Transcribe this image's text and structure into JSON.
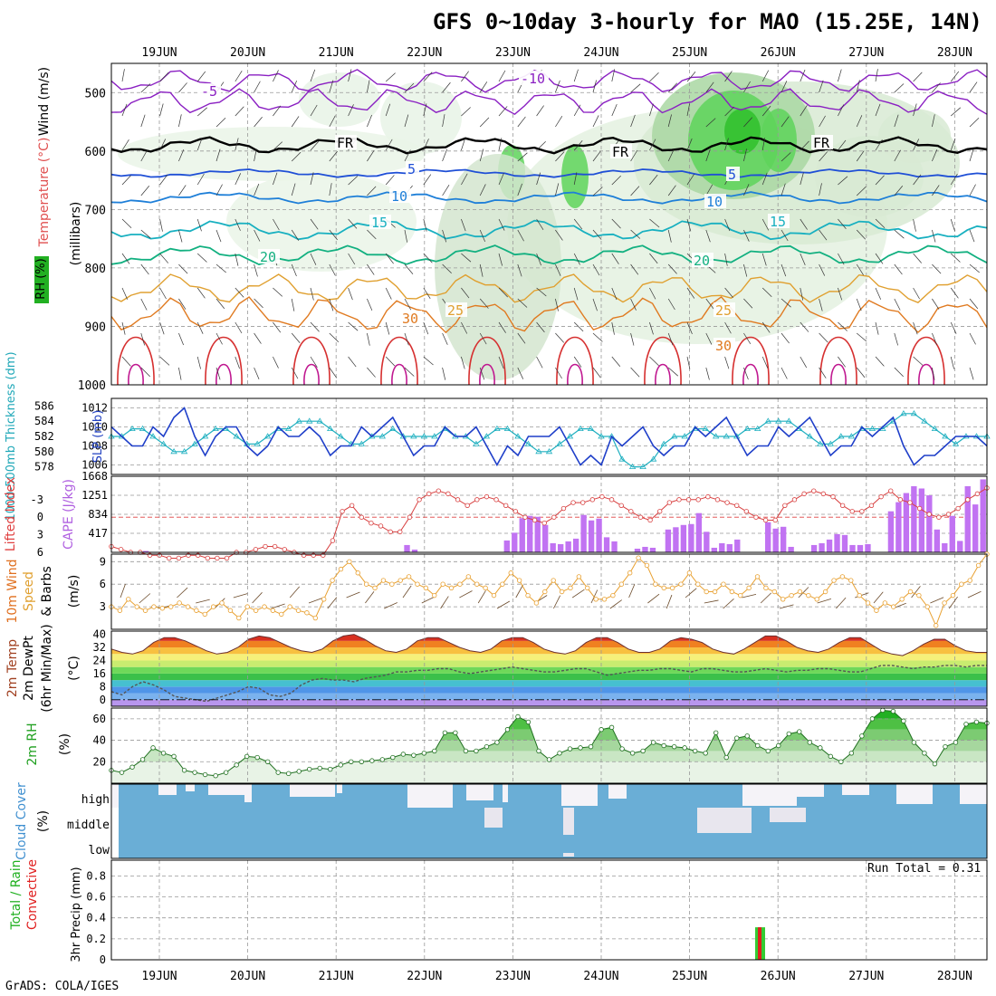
{
  "title": "GFS 0~10day 3-hourly for MAO (15.25E, 14N)",
  "credit": "GrADS: COLA/IGES",
  "run_total": "Run Total = 0.31",
  "colors": {
    "rh_green": "#2ea02e",
    "temp_purple": "#8a1fc2",
    "temp_blue": "#1f4fd6",
    "slp_blue": "#1f3fc9",
    "thick_cyan": "#20b0c0",
    "cape_bar": "#c173f2",
    "li_red": "#d84040",
    "wind_orange": "#e8a030",
    "cloud_blue": "#6aaed6",
    "precip_green": "#33cc33",
    "precip_red": "#e02020"
  },
  "chart_data": [
    {
      "type": "line",
      "panel": "upper-air",
      "x_ticks": [
        "19JUN",
        "20JUN",
        "21JUN",
        "22JUN",
        "23JUN",
        "24JUN",
        "25JUN",
        "26JUN",
        "27JUN",
        "28JUN"
      ],
      "ylabel_parts": [
        "RH (%)",
        "Temperature (°C)",
        "Wind (m/s)"
      ],
      "ylabel_units": "(millibars)",
      "y_ticks": [
        500,
        600,
        700,
        800,
        900,
        1000
      ],
      "ylim": [
        450,
        1000
      ],
      "contour_labels": [
        "-10",
        "-5",
        "FR",
        "FR",
        "FR",
        "5",
        "5",
        "10",
        "10",
        "15",
        "15",
        "20",
        "20",
        "25",
        "25",
        "30",
        "30"
      ]
    },
    {
      "type": "line",
      "panel": "thickness-slp",
      "ylabel_left": "1000-500mb Thickness (dm)",
      "ylabel_right": "SLP (mb)",
      "y_ticks_left": [
        578,
        580,
        582,
        584,
        586
      ],
      "y_ticks_right": [
        1006,
        1008,
        1010,
        1012
      ],
      "series": [
        {
          "name": "SLP (mb)",
          "values": [
            1010,
            1009,
            1008,
            1008,
            1010,
            1009,
            1011,
            1012,
            1009,
            1007,
            1009,
            1010,
            1010,
            1008,
            1007,
            1008,
            1010,
            1009,
            1009,
            1010,
            1009,
            1007,
            1008,
            1008,
            1010,
            1009,
            1010,
            1011,
            1009,
            1007,
            1008,
            1008,
            1010,
            1009,
            1009,
            1010,
            1008,
            1006,
            1008,
            1007,
            1009,
            1009,
            1009,
            1010,
            1008,
            1006,
            1007,
            1006,
            1009,
            1008,
            1009,
            1010,
            1008,
            1007,
            1008,
            1008,
            1010,
            1009,
            1010,
            1011,
            1009,
            1007,
            1008,
            1008,
            1010,
            1009,
            1010,
            1011,
            1009,
            1007,
            1008,
            1008,
            1010,
            1009,
            1010,
            1011,
            1008,
            1006,
            1007,
            1007,
            1008,
            1009,
            1009,
            1009,
            1008
          ]
        },
        {
          "name": "Thickness (dm)",
          "values": [
            582,
            582,
            583,
            583,
            582,
            581,
            580,
            580,
            581,
            582,
            583,
            583,
            582,
            581,
            581,
            582,
            583,
            583,
            584,
            584,
            584,
            583,
            582,
            581,
            581,
            582,
            582,
            583,
            582,
            582,
            582,
            582,
            583,
            582,
            582,
            581,
            582,
            583,
            583,
            582,
            581,
            580,
            580,
            581,
            582,
            583,
            583,
            582,
            582,
            579,
            578,
            578,
            579,
            581,
            582,
            582,
            583,
            583,
            582,
            582,
            582,
            583,
            583,
            584,
            584,
            584,
            583,
            582,
            581,
            581,
            582,
            582,
            583,
            583,
            583,
            584,
            585,
            585,
            584,
            583,
            582,
            581,
            582,
            582,
            582
          ]
        }
      ]
    },
    {
      "type": "bar",
      "panel": "cape-li",
      "ylabel_left": "Lifted Index",
      "ylabel_right": "CAPE (J/kg)",
      "y_ticks_left": [
        -3,
        0,
        3,
        6
      ],
      "y_ticks_right": [
        417,
        834,
        1251,
        1668
      ],
      "series": [
        {
          "name": "CAPE (J/kg)",
          "values": [
            0,
            0,
            0,
            0,
            30,
            0,
            0,
            0,
            0,
            0,
            0,
            0,
            0,
            0,
            0,
            0,
            0,
            0,
            0,
            0,
            0,
            0,
            0,
            0,
            0,
            0,
            0,
            0,
            0,
            0,
            0,
            0,
            0,
            0,
            0,
            0,
            0,
            0,
            160,
            60,
            0,
            0,
            0,
            0,
            0,
            0,
            0,
            0,
            0,
            0,
            0,
            260,
            430,
            750,
            800,
            780,
            600,
            200,
            180,
            240,
            300,
            820,
            700,
            740,
            330,
            240,
            0,
            0,
            80,
            120,
            100,
            0,
            500,
            550,
            600,
            620,
            860,
            450,
            100,
            200,
            180,
            280,
            0,
            0,
            0,
            660,
            520,
            560,
            120,
            0,
            0,
            160,
            200,
            280,
            400,
            380,
            160,
            160,
            180,
            0,
            0,
            900,
            1100,
            1300,
            1450,
            1400,
            1250,
            500,
            200,
            800,
            250,
            1450,
            1050,
            1600
          ]
        },
        {
          "name": "Lifted Index",
          "values": [
            5,
            5.5,
            6,
            6,
            6.5,
            6.5,
            7,
            7,
            6.5,
            6.5,
            7,
            7,
            7,
            6,
            6,
            5.5,
            5,
            5,
            5.5,
            6,
            6.5,
            6.5,
            6.5,
            4,
            -1,
            -2,
            0,
            1,
            1.5,
            2.5,
            2.5,
            0,
            -3,
            -4,
            -4.5,
            -4,
            -3,
            -2,
            -3,
            -3.5,
            -3,
            -2,
            -1,
            0,
            0.5,
            1,
            0,
            -1.5,
            -2.5,
            -2.5,
            -3,
            -3.5,
            -3,
            -2,
            -1,
            0,
            0.5,
            -1,
            -2.5,
            -3,
            -3,
            -3,
            -3.5,
            -3,
            -2.5,
            -2,
            -1,
            0,
            0.5,
            0.5,
            -2,
            -3,
            -4,
            -4.5,
            -4,
            -3.5,
            -2,
            -1,
            -1,
            -2,
            -3.5,
            -4.5,
            -3,
            -2.5,
            -1.5,
            -0.5,
            0,
            -0.5,
            -1.5,
            -3,
            -4,
            -5
          ]
        }
      ]
    },
    {
      "type": "line",
      "panel": "wind10m",
      "ylabel": "10m Wind Speed & Barbs (m/s)",
      "ylabel_lines": [
        "10m Wind",
        "Speed",
        "& Barbs"
      ],
      "ylabel_units": "(m/s)",
      "y_ticks": [
        3,
        6,
        9
      ],
      "ylim": [
        0,
        10
      ],
      "series": [
        {
          "name": "Wind Speed (m/s)",
          "values": [
            3,
            2.5,
            4,
            3,
            2.5,
            3,
            2.8,
            3,
            3.5,
            3,
            2.5,
            2,
            3,
            3.5,
            2.5,
            1.5,
            3,
            2.5,
            3,
            2.5,
            2,
            3,
            2.5,
            2.2,
            1.5,
            4,
            6.5,
            8,
            9,
            7.5,
            6,
            5.5,
            6.5,
            6,
            6.5,
            7,
            6,
            5.5,
            4.5,
            6,
            5.5,
            6,
            7,
            6,
            5.5,
            4.5,
            6,
            7.5,
            6.5,
            4.5,
            3.5,
            5,
            6.5,
            5,
            5.5,
            7,
            5.5,
            4,
            4,
            4.5,
            6,
            7.5,
            9.5,
            8.5,
            6,
            5.5,
            5.5,
            6,
            7.5,
            6,
            5,
            5,
            6,
            5,
            4.5,
            5.5,
            7,
            5.5,
            5,
            4,
            4.5,
            5,
            4.5,
            4,
            5,
            6.5,
            7,
            6.5,
            4.5,
            3.5,
            2.5,
            3.5,
            3,
            4,
            5,
            4.5,
            3,
            0.5,
            3.5,
            4.5,
            6,
            6.5,
            8.5,
            10
          ]
        }
      ]
    },
    {
      "type": "area",
      "panel": "temp2m",
      "ylabel_lines": [
        "2m Temp",
        "2m DewPt",
        "(6hr Min/Max)"
      ],
      "ylabel_units": "(°C)",
      "y_ticks": [
        0,
        8,
        16,
        24,
        32,
        40
      ],
      "series": [
        {
          "name": "2m Temp",
          "values": [
            31,
            29,
            28,
            30,
            35,
            38,
            38,
            36,
            33,
            30,
            28,
            29,
            32,
            37,
            39,
            38,
            35,
            32,
            30,
            29,
            31,
            36,
            39,
            40,
            37,
            33,
            30,
            29,
            31,
            36,
            38,
            38,
            35,
            32,
            30,
            29,
            31,
            36,
            38,
            38,
            35,
            31,
            29,
            28,
            30,
            35,
            38,
            38,
            35,
            31,
            29,
            29,
            31,
            36,
            38,
            37,
            35,
            31,
            29,
            28,
            31,
            35,
            39,
            39,
            36,
            32,
            30,
            29,
            31,
            35,
            38,
            38,
            34,
            30,
            28,
            27,
            30,
            34,
            37,
            37,
            33,
            30,
            29,
            29
          ]
        },
        {
          "name": "2m DewPt",
          "values": [
            5,
            3,
            8,
            11,
            9,
            6,
            2,
            1,
            0,
            -1,
            1,
            3,
            5,
            8,
            7,
            3,
            2,
            4,
            9,
            12,
            13,
            12,
            12,
            11,
            13,
            14,
            15,
            17,
            17,
            18,
            18,
            19,
            19,
            17,
            16,
            17,
            18,
            19,
            20,
            19,
            18,
            17,
            17,
            18,
            19,
            19,
            17,
            15,
            16,
            17,
            18,
            18,
            19,
            19,
            18,
            17,
            19,
            19,
            18,
            17,
            17,
            18,
            19,
            18,
            17,
            18,
            18,
            19,
            19,
            18,
            17,
            17,
            19,
            21,
            21,
            20,
            19,
            20,
            20,
            21,
            21,
            20,
            21,
            21
          ]
        }
      ]
    },
    {
      "type": "area",
      "panel": "rh2m",
      "ylabel": "2m RH",
      "ylabel_units": "(%)",
      "y_ticks": [
        20,
        40,
        60
      ],
      "ylim": [
        0,
        70
      ],
      "series": [
        {
          "name": "2m RH (%)",
          "values": [
            12,
            10,
            15,
            22,
            33,
            28,
            25,
            12,
            10,
            8,
            7,
            10,
            17,
            25,
            24,
            20,
            10,
            9,
            11,
            13,
            14,
            13,
            17,
            20,
            20,
            21,
            22,
            24,
            27,
            26,
            28,
            30,
            47,
            47,
            30,
            30,
            34,
            38,
            50,
            62,
            57,
            30,
            22,
            28,
            32,
            33,
            34,
            50,
            52,
            32,
            28,
            30,
            38,
            35,
            34,
            33,
            30,
            28,
            47,
            24,
            42,
            44,
            35,
            30,
            35,
            46,
            48,
            38,
            33,
            25,
            20,
            28,
            44,
            60,
            68,
            67,
            58,
            38,
            28,
            18,
            34,
            38,
            55,
            57,
            56
          ]
        }
      ]
    },
    {
      "type": "bar",
      "panel": "cloud",
      "ylabel": "Cloud Cover",
      "ylabel_units": "(%)",
      "levels": [
        "high",
        "middle",
        "low"
      ]
    },
    {
      "type": "bar",
      "panel": "precip",
      "ylabel_left": "Total / Rain",
      "ylabel_left2": "Convective",
      "ylabel_units": "3hr Precip (mm)",
      "y_ticks": [
        0,
        0.2,
        0.4,
        0.6,
        0.8
      ],
      "ylim": [
        0,
        0.95
      ],
      "series": [
        {
          "name": "Total / Rain",
          "values": [
            {
              "x": "25JUN 18Z",
              "y": 0.31
            }
          ]
        },
        {
          "name": "Convective",
          "values": [
            {
              "x": "25JUN 18Z",
              "y": 0.31
            }
          ]
        }
      ]
    }
  ]
}
